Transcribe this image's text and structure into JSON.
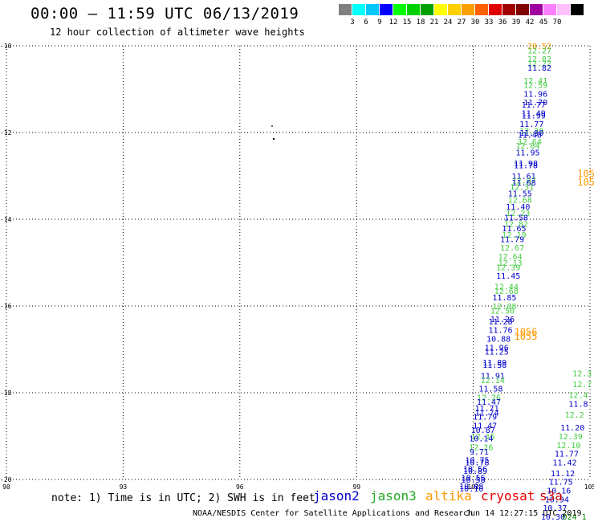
{
  "header": {
    "title": "00:00 – 11:59 UTC 06/13/2019",
    "subtitle": "12 hour collection of altimeter wave heights"
  },
  "color_scale": {
    "colors": [
      "#808080",
      "#00ffff",
      "#00c8ff",
      "#0000ff",
      "#00ff00",
      "#00d000",
      "#00a000",
      "#ffff00",
      "#ffd000",
      "#ffa000",
      "#ff6000",
      "#e00000",
      "#a00000",
      "#800000",
      "#a000a0",
      "#ff80ff",
      "#ffc0ff",
      "#000000"
    ],
    "labels": [
      "3",
      "6",
      "9",
      "12",
      "15",
      "18",
      "21",
      "24",
      "27",
      "30",
      "33",
      "36",
      "39",
      "42",
      "45",
      "70"
    ],
    "unit": "(ft)"
  },
  "chart_data": {
    "type": "scatter",
    "title": "12 hour collection of altimeter wave heights",
    "x_ticks": [
      "90",
      "93",
      "96",
      "99",
      "102",
      "105"
    ],
    "y_ticks": [
      "-10",
      "-12",
      "-14",
      "-16",
      "-18",
      "-20"
    ],
    "xlim": [
      90,
      105
    ],
    "ylim": [
      -20,
      -10
    ],
    "grid": true,
    "colors": {
      "jason2": "#0000cc",
      "jason3": "#22aa22",
      "altika": "#ff9900",
      "cryosat": "#ee0000",
      "s3a": "#cc0000",
      "mixed_green": "#44cc44"
    },
    "tracks": [
      {
        "satellite": "jason2+jason3",
        "points": [
          {
            "x": 103.7,
            "y": -10.0,
            "v": "28.52",
            "c": "#ff9900"
          },
          {
            "x": 103.7,
            "y": -10.1,
            "v": "12.27",
            "c": "#44cc44"
          },
          {
            "x": 103.7,
            "y": -10.3,
            "v": "12.82",
            "c": "#44cc44"
          },
          {
            "x": 103.7,
            "y": -10.4,
            "v": "12.22",
            "c": "#44cc44"
          },
          {
            "x": 103.7,
            "y": -10.5,
            "v": "11.82",
            "c": "#0000cc"
          },
          {
            "x": 103.6,
            "y": -10.8,
            "v": "12.41",
            "c": "#44cc44"
          },
          {
            "x": 103.6,
            "y": -10.9,
            "v": "12.59",
            "c": "#44cc44"
          },
          {
            "x": 103.6,
            "y": -11.1,
            "v": "11.96",
            "c": "#0000cc"
          },
          {
            "x": 103.6,
            "y": -11.3,
            "v": "11.70",
            "c": "#0000cc"
          },
          {
            "x": 103.55,
            "y": -11.35,
            "v": "11.77",
            "c": "#0000cc"
          },
          {
            "x": 103.55,
            "y": -11.55,
            "v": "11.49",
            "c": "#0000cc"
          },
          {
            "x": 103.55,
            "y": -11.6,
            "v": "11.99",
            "c": "#0000cc"
          },
          {
            "x": 103.5,
            "y": -11.8,
            "v": "11.77",
            "c": "#0000cc"
          },
          {
            "x": 103.5,
            "y": -11.95,
            "v": "12.29",
            "c": "#44cc44"
          },
          {
            "x": 103.5,
            "y": -12.0,
            "v": "11.90",
            "c": "#0000cc"
          },
          {
            "x": 103.45,
            "y": -12.05,
            "v": "11.40",
            "c": "#0000cc"
          },
          {
            "x": 103.45,
            "y": -12.2,
            "v": "12.64",
            "c": "#44cc44"
          },
          {
            "x": 103.4,
            "y": -12.3,
            "v": "12.84",
            "c": "#44cc44"
          },
          {
            "x": 103.4,
            "y": -12.45,
            "v": "11.95",
            "c": "#0000cc"
          },
          {
            "x": 103.35,
            "y": -12.7,
            "v": "11.98",
            "c": "#0000cc"
          },
          {
            "x": 103.35,
            "y": -12.75,
            "v": "11.78",
            "c": "#0000cc"
          },
          {
            "x": 103.3,
            "y": -13.0,
            "v": "11.61",
            "c": "#0000cc"
          },
          {
            "x": 103.3,
            "y": -13.1,
            "v": "12.07",
            "c": "#44cc44"
          },
          {
            "x": 103.3,
            "y": -13.15,
            "v": "11.68",
            "c": "#0000cc"
          },
          {
            "x": 103.25,
            "y": -13.25,
            "v": "12.31",
            "c": "#44cc44"
          },
          {
            "x": 103.2,
            "y": -13.4,
            "v": "11.55",
            "c": "#0000cc"
          },
          {
            "x": 103.2,
            "y": -13.55,
            "v": "12.68",
            "c": "#44cc44"
          },
          {
            "x": 103.15,
            "y": -13.7,
            "v": "11.40",
            "c": "#0000cc"
          },
          {
            "x": 103.15,
            "y": -13.85,
            "v": "12.23",
            "c": "#44cc44"
          },
          {
            "x": 103.1,
            "y": -13.95,
            "v": "11.58",
            "c": "#0000cc"
          },
          {
            "x": 103.1,
            "y": -14.1,
            "v": "12.82",
            "c": "#44cc44"
          },
          {
            "x": 103.05,
            "y": -14.2,
            "v": "11.65",
            "c": "#0000cc"
          },
          {
            "x": 103.05,
            "y": -14.35,
            "v": "12.19",
            "c": "#44cc44"
          },
          {
            "x": 103.0,
            "y": -14.45,
            "v": "11.79",
            "c": "#0000cc"
          },
          {
            "x": 103.0,
            "y": -14.65,
            "v": "12.67",
            "c": "#44cc44"
          },
          {
            "x": 102.95,
            "y": -14.85,
            "v": "12.64",
            "c": "#44cc44"
          },
          {
            "x": 102.95,
            "y": -15.0,
            "v": "12.13",
            "c": "#44cc44"
          },
          {
            "x": 102.9,
            "y": -15.1,
            "v": "12.39",
            "c": "#44cc44"
          },
          {
            "x": 102.9,
            "y": -15.3,
            "v": "11.45",
            "c": "#0000cc"
          },
          {
            "x": 102.85,
            "y": -15.55,
            "v": "12.44",
            "c": "#44cc44"
          },
          {
            "x": 102.85,
            "y": -15.65,
            "v": "12.68",
            "c": "#44cc44"
          },
          {
            "x": 102.8,
            "y": -15.8,
            "v": "11.85",
            "c": "#0000cc"
          },
          {
            "x": 102.8,
            "y": -16.0,
            "v": "12.08",
            "c": "#44cc44"
          },
          {
            "x": 102.75,
            "y": -16.1,
            "v": "12.50",
            "c": "#44cc44"
          },
          {
            "x": 102.75,
            "y": -16.3,
            "v": "11.26",
            "c": "#0000cc"
          },
          {
            "x": 102.7,
            "y": -16.35,
            "v": "11.28",
            "c": "#0000cc"
          },
          {
            "x": 102.7,
            "y": -16.55,
            "v": "11.76",
            "c": "#0000cc"
          },
          {
            "x": 102.65,
            "y": -16.75,
            "v": "10.88",
            "c": "#0000cc"
          },
          {
            "x": 102.6,
            "y": -16.95,
            "v": "11.96",
            "c": "#0000cc"
          },
          {
            "x": 102.6,
            "y": -17.05,
            "v": "11.25",
            "c": "#0000cc"
          },
          {
            "x": 102.55,
            "y": -17.3,
            "v": "11.89",
            "c": "#0000cc"
          },
          {
            "x": 102.55,
            "y": -17.35,
            "v": "11.58",
            "c": "#0000cc"
          },
          {
            "x": 102.5,
            "y": -17.6,
            "v": "11.91",
            "c": "#0000cc"
          },
          {
            "x": 102.5,
            "y": -17.7,
            "v": "12.14",
            "c": "#44cc44"
          },
          {
            "x": 102.45,
            "y": -17.9,
            "v": "11.58",
            "c": "#0000cc"
          },
          {
            "x": 102.4,
            "y": -18.1,
            "v": "12.26",
            "c": "#44cc44"
          },
          {
            "x": 102.4,
            "y": -18.2,
            "v": "11.47",
            "c": "#0000cc"
          },
          {
            "x": 102.35,
            "y": -18.35,
            "v": "11.71",
            "c": "#0000cc"
          },
          {
            "x": 102.35,
            "y": -18.45,
            "v": "11.74",
            "c": "#0000cc"
          },
          {
            "x": 102.3,
            "y": -18.55,
            "v": "11.79",
            "c": "#0000cc"
          },
          {
            "x": 102.3,
            "y": -18.75,
            "v": "11.47",
            "c": "#0000cc"
          },
          {
            "x": 102.25,
            "y": -18.85,
            "v": "10.87",
            "c": "#0000cc"
          },
          {
            "x": 102.25,
            "y": -19.0,
            "v": "12.15",
            "c": "#44cc44"
          },
          {
            "x": 102.2,
            "y": -19.05,
            "v": "10.14",
            "c": "#0000cc"
          },
          {
            "x": 102.2,
            "y": -19.25,
            "v": "12.26",
            "c": "#44cc44"
          },
          {
            "x": 102.15,
            "y": -19.35,
            "v": "9.71",
            "c": "#0000cc"
          },
          {
            "x": 102.1,
            "y": -19.55,
            "v": "10.75",
            "c": "#0000cc"
          },
          {
            "x": 102.1,
            "y": -19.6,
            "v": "10.78",
            "c": "#0000cc"
          },
          {
            "x": 102.05,
            "y": -19.75,
            "v": "10.56",
            "c": "#0000cc"
          },
          {
            "x": 102.05,
            "y": -19.8,
            "v": "10.89",
            "c": "#0000cc"
          },
          {
            "x": 102.0,
            "y": -19.95,
            "v": "10.56",
            "c": "#0000cc"
          },
          {
            "x": 102.0,
            "y": -20.0,
            "v": "10.58",
            "c": "#0000cc"
          },
          {
            "x": 101.95,
            "y": -20.15,
            "v": "10.08",
            "c": "#0000cc"
          },
          {
            "x": 101.95,
            "y": -20.2,
            "v": "10.10",
            "c": "#0000cc"
          }
        ]
      },
      {
        "satellite": "jason2+jason3 (east track)",
        "points": [
          {
            "x": 104.8,
            "y": -17.55,
            "v": "12.3",
            "c": "#44cc44"
          },
          {
            "x": 104.8,
            "y": -17.8,
            "v": "12.7",
            "c": "#44cc44"
          },
          {
            "x": 104.7,
            "y": -18.05,
            "v": "12.4",
            "c": "#44cc44"
          },
          {
            "x": 104.7,
            "y": -18.25,
            "v": "11.8",
            "c": "#0000cc"
          },
          {
            "x": 104.6,
            "y": -18.5,
            "v": "12.2",
            "c": "#44cc44"
          },
          {
            "x": 104.55,
            "y": -18.8,
            "v": "11.20",
            "c": "#0000cc"
          },
          {
            "x": 104.5,
            "y": -19.0,
            "v": "12.39",
            "c": "#44cc44"
          },
          {
            "x": 104.45,
            "y": -19.2,
            "v": "12.10",
            "c": "#44cc44"
          },
          {
            "x": 104.4,
            "y": -19.4,
            "v": "11.77",
            "c": "#0000cc"
          },
          {
            "x": 104.35,
            "y": -19.6,
            "v": "11.42",
            "c": "#0000cc"
          },
          {
            "x": 104.3,
            "y": -19.85,
            "v": "11.12",
            "c": "#0000cc"
          },
          {
            "x": 104.25,
            "y": -20.05,
            "v": "11.75",
            "c": "#0000cc"
          },
          {
            "x": 104.2,
            "y": -20.25,
            "v": "10.16",
            "c": "#0000cc"
          },
          {
            "x": 104.15,
            "y": -20.45,
            "v": "10.94",
            "c": "#0000cc"
          },
          {
            "x": 104.1,
            "y": -20.65,
            "v": "10.37",
            "c": "#0000cc"
          },
          {
            "x": 104.05,
            "y": -20.85,
            "v": "10.30",
            "c": "#0000cc"
          },
          {
            "x": 104.6,
            "y": -20.85,
            "v": "024 1",
            "c": "#008800"
          }
        ]
      },
      {
        "satellite": "altika",
        "points": [
          {
            "x": 104.9,
            "y": -12.95,
            "v": "105",
            "c": "#ff9900"
          },
          {
            "x": 104.9,
            "y": -13.15,
            "v": "105",
            "c": "#ff9900"
          },
          {
            "x": 103.35,
            "y": -16.6,
            "v": "1056",
            "c": "#ff9900"
          },
          {
            "x": 103.35,
            "y": -16.7,
            "v": "1055",
            "c": "#ff9900"
          }
        ]
      }
    ]
  },
  "legend": {
    "note": "note: 1) Time is in UTC; 2) SWH is in feet",
    "satellites": [
      {
        "name": "jason2",
        "color": "#0000cc"
      },
      {
        "name": "jason3",
        "color": "#22aa22"
      },
      {
        "name": "altika",
        "color": "#ff9900"
      },
      {
        "name": "cryosat",
        "color": "#ee0000"
      },
      {
        "name": "s3a",
        "color": "#cc0000"
      }
    ]
  },
  "footer": {
    "credit": "NOAA/NESDIS Center for Satellite Applications and Research",
    "timestamp": "Jun 14 12:27:15 UTC 2019"
  }
}
